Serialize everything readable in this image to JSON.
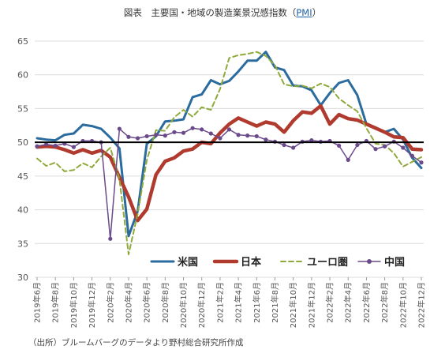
{
  "title_prefix": "図表　主要国・地域の製造業景況感指数（",
  "title_pmi": "PMI",
  "title_suffix": "）",
  "source_note": "（出所）ブルームバーグのデータより野村総合研究所作成",
  "colors": {
    "us": "#2b6b9e",
    "japan": "#b03a2e",
    "euro": "#8faa3a",
    "china": "#6a4a8a",
    "reference": "#000000",
    "grid": "#dcdcdc"
  },
  "chart_data": {
    "type": "line",
    "title": "図表　主要国・地域の製造業景況感指数（PMI）",
    "ylim": [
      30,
      65
    ],
    "yticks": [
      30,
      35,
      40,
      45,
      50,
      55,
      60,
      65
    ],
    "grid": "horizontal",
    "reference_line": 50,
    "legend_position": "bottom-right",
    "x": [
      "2019-06",
      "2019-07",
      "2019-08",
      "2019-09",
      "2019-10",
      "2019-11",
      "2019-12",
      "2020-01",
      "2020-02",
      "2020-03",
      "2020-04",
      "2020-05",
      "2020-06",
      "2020-07",
      "2020-08",
      "2020-09",
      "2020-10",
      "2020-11",
      "2020-12",
      "2021-01",
      "2021-02",
      "2021-03",
      "2021-04",
      "2021-05",
      "2021-06",
      "2021-07",
      "2021-08",
      "2021-09",
      "2021-10",
      "2021-11",
      "2021-12",
      "2022-01",
      "2022-02",
      "2022-03",
      "2022-04",
      "2022-05",
      "2022-06",
      "2022-07",
      "2022-08",
      "2022-09",
      "2022-10",
      "2022-11",
      "2022-12"
    ],
    "x_tick_labels": [
      "2019年6月",
      "2019年8月",
      "2019年10月",
      "2019年12月",
      "2020年2月",
      "2020年4月",
      "2020年6月",
      "2020年8月",
      "2020年10月",
      "2020年12月",
      "2021年2月",
      "2021年4月",
      "2021年6月",
      "2021年8月",
      "2021年10月",
      "2021年12月",
      "2022年2月",
      "2022年4月",
      "2022年6月",
      "2022年8月",
      "2022年10月",
      "2022年12月"
    ],
    "series": [
      {
        "name": "米国",
        "key": "us",
        "style": "solid-thick",
        "values": [
          50.6,
          50.4,
          50.3,
          51.1,
          51.3,
          52.6,
          52.4,
          52.0,
          50.7,
          49.1,
          36.1,
          39.8,
          49.8,
          50.9,
          53.1,
          53.2,
          53.4,
          56.7,
          57.1,
          59.2,
          58.6,
          59.1,
          60.5,
          62.1,
          62.1,
          63.4,
          61.1,
          60.7,
          58.4,
          58.3,
          57.7,
          55.5,
          57.3,
          58.8,
          59.2,
          57.0,
          52.7,
          52.2,
          51.5,
          52.0,
          50.4,
          47.7,
          46.2
        ]
      },
      {
        "name": "日本",
        "key": "japan",
        "style": "solid-heavy",
        "values": [
          49.3,
          49.4,
          49.3,
          48.9,
          48.4,
          48.9,
          48.4,
          48.8,
          47.8,
          44.8,
          41.9,
          38.4,
          40.1,
          45.2,
          47.2,
          47.7,
          48.7,
          49.0,
          50.0,
          49.8,
          51.4,
          52.7,
          53.6,
          53.0,
          52.4,
          53.0,
          52.7,
          51.5,
          53.2,
          54.5,
          54.3,
          55.4,
          52.7,
          54.1,
          53.5,
          53.3,
          52.7,
          52.1,
          51.5,
          50.8,
          50.7,
          49.0,
          48.9
        ]
      },
      {
        "name": "ユーロ圏",
        "key": "euro",
        "style": "dashed",
        "values": [
          47.6,
          46.5,
          47.0,
          45.7,
          45.9,
          46.9,
          46.3,
          47.9,
          49.2,
          44.5,
          33.4,
          39.4,
          47.4,
          51.8,
          51.7,
          53.7,
          54.8,
          53.8,
          55.2,
          54.8,
          57.9,
          62.5,
          62.9,
          63.1,
          63.4,
          62.8,
          61.4,
          58.6,
          58.3,
          58.4,
          58.0,
          58.7,
          58.2,
          56.5,
          55.5,
          54.6,
          52.1,
          49.8,
          49.6,
          48.4,
          46.4,
          47.1,
          47.8
        ]
      },
      {
        "name": "中国",
        "key": "china",
        "style": "solid-markers",
        "values": [
          49.4,
          49.7,
          49.5,
          49.8,
          49.3,
          50.2,
          50.2,
          50.0,
          35.7,
          52.0,
          50.8,
          50.6,
          50.9,
          51.1,
          51.0,
          51.5,
          51.4,
          52.1,
          51.9,
          51.3,
          50.6,
          51.9,
          51.1,
          51.0,
          50.9,
          50.4,
          50.1,
          49.6,
          49.2,
          50.1,
          50.3,
          50.1,
          50.2,
          49.5,
          47.4,
          49.6,
          50.2,
          49.0,
          49.4,
          50.1,
          49.2,
          48.0,
          47.0
        ]
      }
    ]
  }
}
